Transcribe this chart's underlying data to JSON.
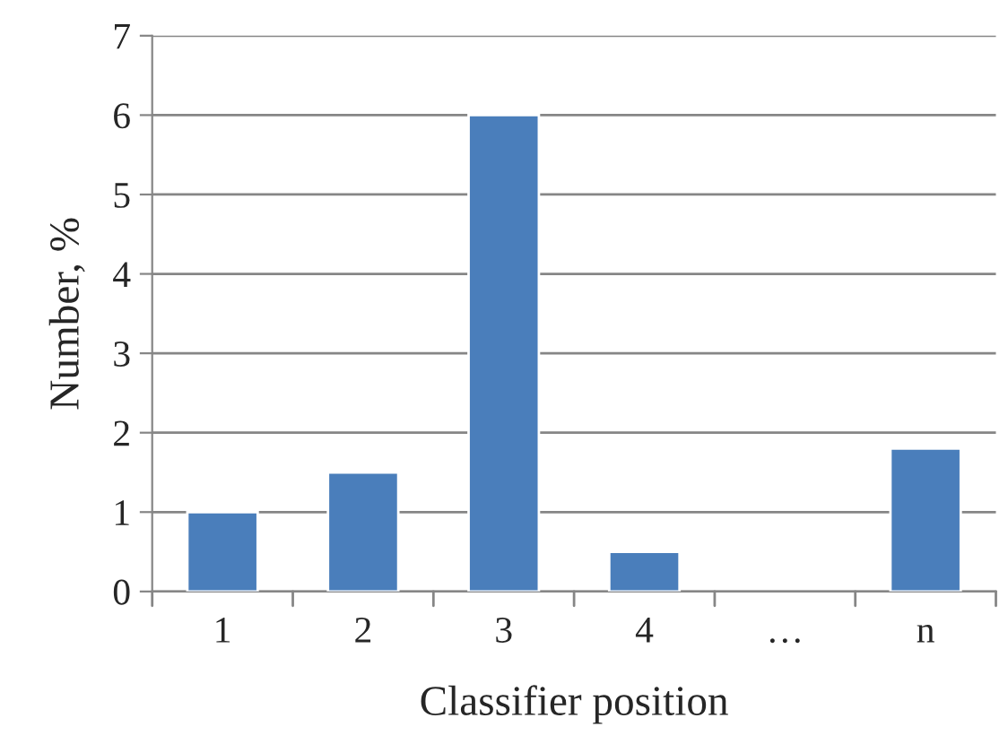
{
  "chart_data": {
    "type": "bar",
    "xlabel": "Classifier position",
    "ylabel": "Number, %",
    "categories": [
      "1",
      "2",
      "3",
      "4",
      "…",
      "n"
    ],
    "values": [
      1,
      1.5,
      6,
      0.5,
      null,
      1.8
    ],
    "color": "#4a7ebb",
    "ylim": [
      0,
      7
    ],
    "yticks": [
      0,
      1,
      2,
      3,
      4,
      5,
      6,
      7
    ],
    "grid": "y"
  }
}
